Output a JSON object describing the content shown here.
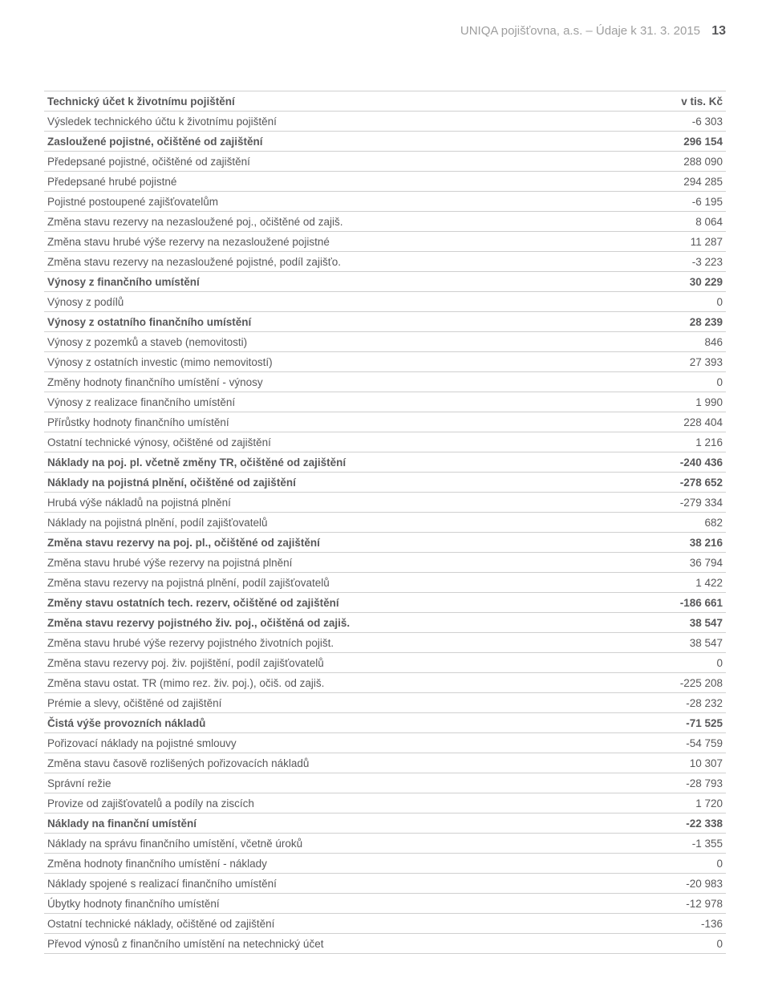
{
  "header": {
    "company": "UNIQA pojišťovna, a.s. – Údaje k 31. 3. 2015",
    "page_number": "13"
  },
  "table": {
    "header_label": "Technický účet k životnímu pojištění",
    "header_value": "v tis. Kč",
    "rows": [
      {
        "label": "Výsledek technického účtu k životnímu pojištění",
        "value": "-6 303",
        "bold": false
      },
      {
        "label": "Zasloužené pojistné, očištěné od zajištění",
        "value": "296 154",
        "bold": true
      },
      {
        "label": "Předepsané pojistné, očištěné od zajištění",
        "value": "288 090",
        "bold": false
      },
      {
        "label": "Předepsané hrubé pojistné",
        "value": "294 285",
        "bold": false
      },
      {
        "label": "Pojistné postoupené zajišťovatelům",
        "value": "-6 195",
        "bold": false
      },
      {
        "label": "Změna stavu rezervy na nezasloužené poj., očištěné od zajiš.",
        "value": "8 064",
        "bold": false
      },
      {
        "label": "Změna stavu hrubé výše rezervy na nezasloužené pojistné",
        "value": "11 287",
        "bold": false
      },
      {
        "label": "Změna stavu rezervy na nezasloužené pojistné, podíl zajišťo.",
        "value": "-3 223",
        "bold": false
      },
      {
        "label": "Výnosy z finančního umístění",
        "value": "30 229",
        "bold": true
      },
      {
        "label": "Výnosy z podílů",
        "value": "0",
        "bold": false
      },
      {
        "label": "Výnosy z ostatního finančního umístění",
        "value": "28 239",
        "bold": true
      },
      {
        "label": "Výnosy z pozemků a staveb (nemovitosti)",
        "value": "846",
        "bold": false
      },
      {
        "label": "Výnosy z ostatních investic (mimo nemovitostí)",
        "value": "27 393",
        "bold": false
      },
      {
        "label": "Změny hodnoty finančního umístění - výnosy",
        "value": "0",
        "bold": false
      },
      {
        "label": "Výnosy z realizace finančního umístění",
        "value": "1 990",
        "bold": false
      },
      {
        "label": "Přírůstky hodnoty finančního umístění",
        "value": "228 404",
        "bold": false
      },
      {
        "label": "Ostatní technické výnosy, očištěné od zajištění",
        "value": "1 216",
        "bold": false
      },
      {
        "label": "Náklady na poj. pl. včetně změny TR, očištěné od zajištění",
        "value": "-240 436",
        "bold": true
      },
      {
        "label": "Náklady na pojistná plnění, očištěné od zajištění",
        "value": "-278 652",
        "bold": true
      },
      {
        "label": "Hrubá výše nákladů na pojistná plnění",
        "value": "-279 334",
        "bold": false
      },
      {
        "label": "Náklady na pojistná plnění, podíl zajišťovatelů",
        "value": "682",
        "bold": false
      },
      {
        "label": "Změna stavu rezervy na poj. pl., očištěné od zajištění",
        "value": "38 216",
        "bold": true
      },
      {
        "label": "Změna stavu hrubé výše rezervy na pojistná plnění",
        "value": "36 794",
        "bold": false
      },
      {
        "label": "Změna stavu rezervy na pojistná plnění, podíl zajišťovatelů",
        "value": "1 422",
        "bold": false
      },
      {
        "label": "Změny stavu ostatních tech. rezerv, očištěné od zajištění",
        "value": "-186 661",
        "bold": true
      },
      {
        "label": "Změna stavu rezervy pojistného živ. poj., očištěná od zajiš.",
        "value": "38 547",
        "bold": true
      },
      {
        "label": "Změna stavu hrubé výše rezervy pojistného životních pojišt.",
        "value": "38 547",
        "bold": false
      },
      {
        "label": "Změna stavu rezervy poj. živ. pojištění, podíl zajišťovatelů",
        "value": "0",
        "bold": false
      },
      {
        "label": "Změna stavu ostat. TR (mimo rez. živ. poj.), očiš. od zajiš.",
        "value": "-225 208",
        "bold": false
      },
      {
        "label": "Prémie a slevy, očištěné od zajištění",
        "value": "-28 232",
        "bold": false
      },
      {
        "label": "Čistá výše provozních nákladů",
        "value": "-71 525",
        "bold": true
      },
      {
        "label": "Pořizovací náklady na pojistné smlouvy",
        "value": "-54 759",
        "bold": false
      },
      {
        "label": "Změna stavu časově rozlišených pořizovacích nákladů",
        "value": "10 307",
        "bold": false
      },
      {
        "label": "Správní režie",
        "value": "-28 793",
        "bold": false
      },
      {
        "label": "Provize od zajišťovatelů a podíly na ziscích",
        "value": "1 720",
        "bold": false
      },
      {
        "label": "Náklady na finanční umístění",
        "value": "-22 338",
        "bold": true
      },
      {
        "label": "Náklady na správu finančního umístění, včetně úroků",
        "value": "-1 355",
        "bold": false
      },
      {
        "label": "Změna hodnoty finančního umístění - náklady",
        "value": "0",
        "bold": false
      },
      {
        "label": "Náklady spojené s realizací finančního umístění",
        "value": "-20 983",
        "bold": false
      },
      {
        "label": "Úbytky hodnoty finančního umístění",
        "value": "-12 978",
        "bold": false
      },
      {
        "label": "Ostatní technické náklady, očištěné od zajištění",
        "value": "-136",
        "bold": false
      },
      {
        "label": "Převod výnosů z finančního umístění na netechnický účet",
        "value": "0",
        "bold": false
      }
    ]
  }
}
